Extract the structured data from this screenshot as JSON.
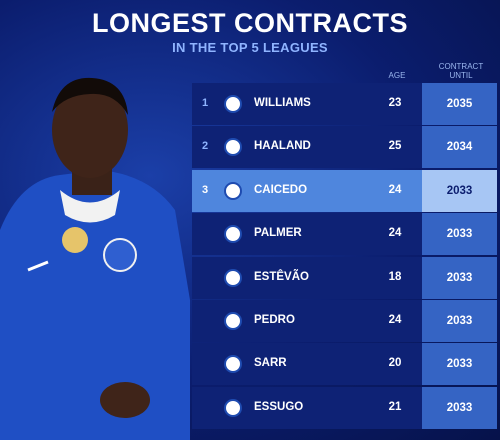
{
  "header": {
    "title": "LONGEST CONTRACTS",
    "subtitle": "IN THE TOP 5 LEAGUES"
  },
  "table": {
    "columns": {
      "age": "AGE",
      "contract": "CONTRACT UNTIL"
    },
    "rows": [
      {
        "rank": 1,
        "name": "WILLIAMS",
        "age": 23,
        "until": 2035
      },
      {
        "rank": 2,
        "name": "HAALAND",
        "age": 25,
        "until": 2034
      },
      {
        "rank": 3,
        "name": "CAICEDO",
        "age": 24,
        "until": 2033
      },
      {
        "name": "PALMER",
        "age": 24,
        "until": 2033
      },
      {
        "name": "ESTÊVÃO",
        "age": 18,
        "until": 2033
      },
      {
        "name": "PEDRO",
        "age": 24,
        "until": 2033
      },
      {
        "name": "SARR",
        "age": 20,
        "until": 2033
      },
      {
        "name": "ESSUGO",
        "age": 21,
        "until": 2033
      }
    ]
  }
}
